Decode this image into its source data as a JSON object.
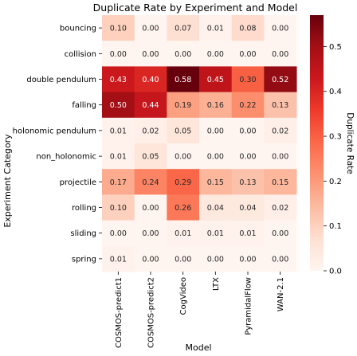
{
  "chart_data": {
    "type": "heatmap",
    "title": "Duplicate Rate by Experiment and Model",
    "xlabel": "Model",
    "ylabel": "Experiment Category",
    "colorbar_label": "Duplicate Rate",
    "colorbar_range": [
      0.0,
      0.57
    ],
    "colorbar_ticks": [
      "0.0",
      "0.1",
      "0.2",
      "0.3",
      "0.4",
      "0.5"
    ],
    "colormap": "Reds",
    "columns": [
      "COSMOS-predict1",
      "COSMOS-predict2",
      "CogVideo",
      "LTX",
      "PyramidalFlow",
      "WAN-2.1"
    ],
    "rows": [
      "bouncing",
      "collision",
      "double pendulum",
      "falling",
      "holonomic pendulum",
      "non_holonomic",
      "projectile",
      "rolling",
      "sliding",
      "spring"
    ],
    "values": [
      [
        0.1,
        0.0,
        0.07,
        0.01,
        0.08,
        0.0
      ],
      [
        0.0,
        0.0,
        0.0,
        0.0,
        0.0,
        0.0
      ],
      [
        0.43,
        0.4,
        0.58,
        0.45,
        0.3,
        0.52
      ],
      [
        0.5,
        0.44,
        0.19,
        0.16,
        0.22,
        0.13
      ],
      [
        0.01,
        0.02,
        0.05,
        0.0,
        0.0,
        0.02
      ],
      [
        0.01,
        0.05,
        0.0,
        0.0,
        0.0,
        0.0
      ],
      [
        0.17,
        0.24,
        0.29,
        0.15,
        0.13,
        0.15
      ],
      [
        0.1,
        0.0,
        0.26,
        0.04,
        0.04,
        0.02
      ],
      [
        0.0,
        0.0,
        0.01,
        0.01,
        0.01,
        0.0
      ],
      [
        0.01,
        0.0,
        0.0,
        0.0,
        0.0,
        0.0
      ]
    ]
  }
}
